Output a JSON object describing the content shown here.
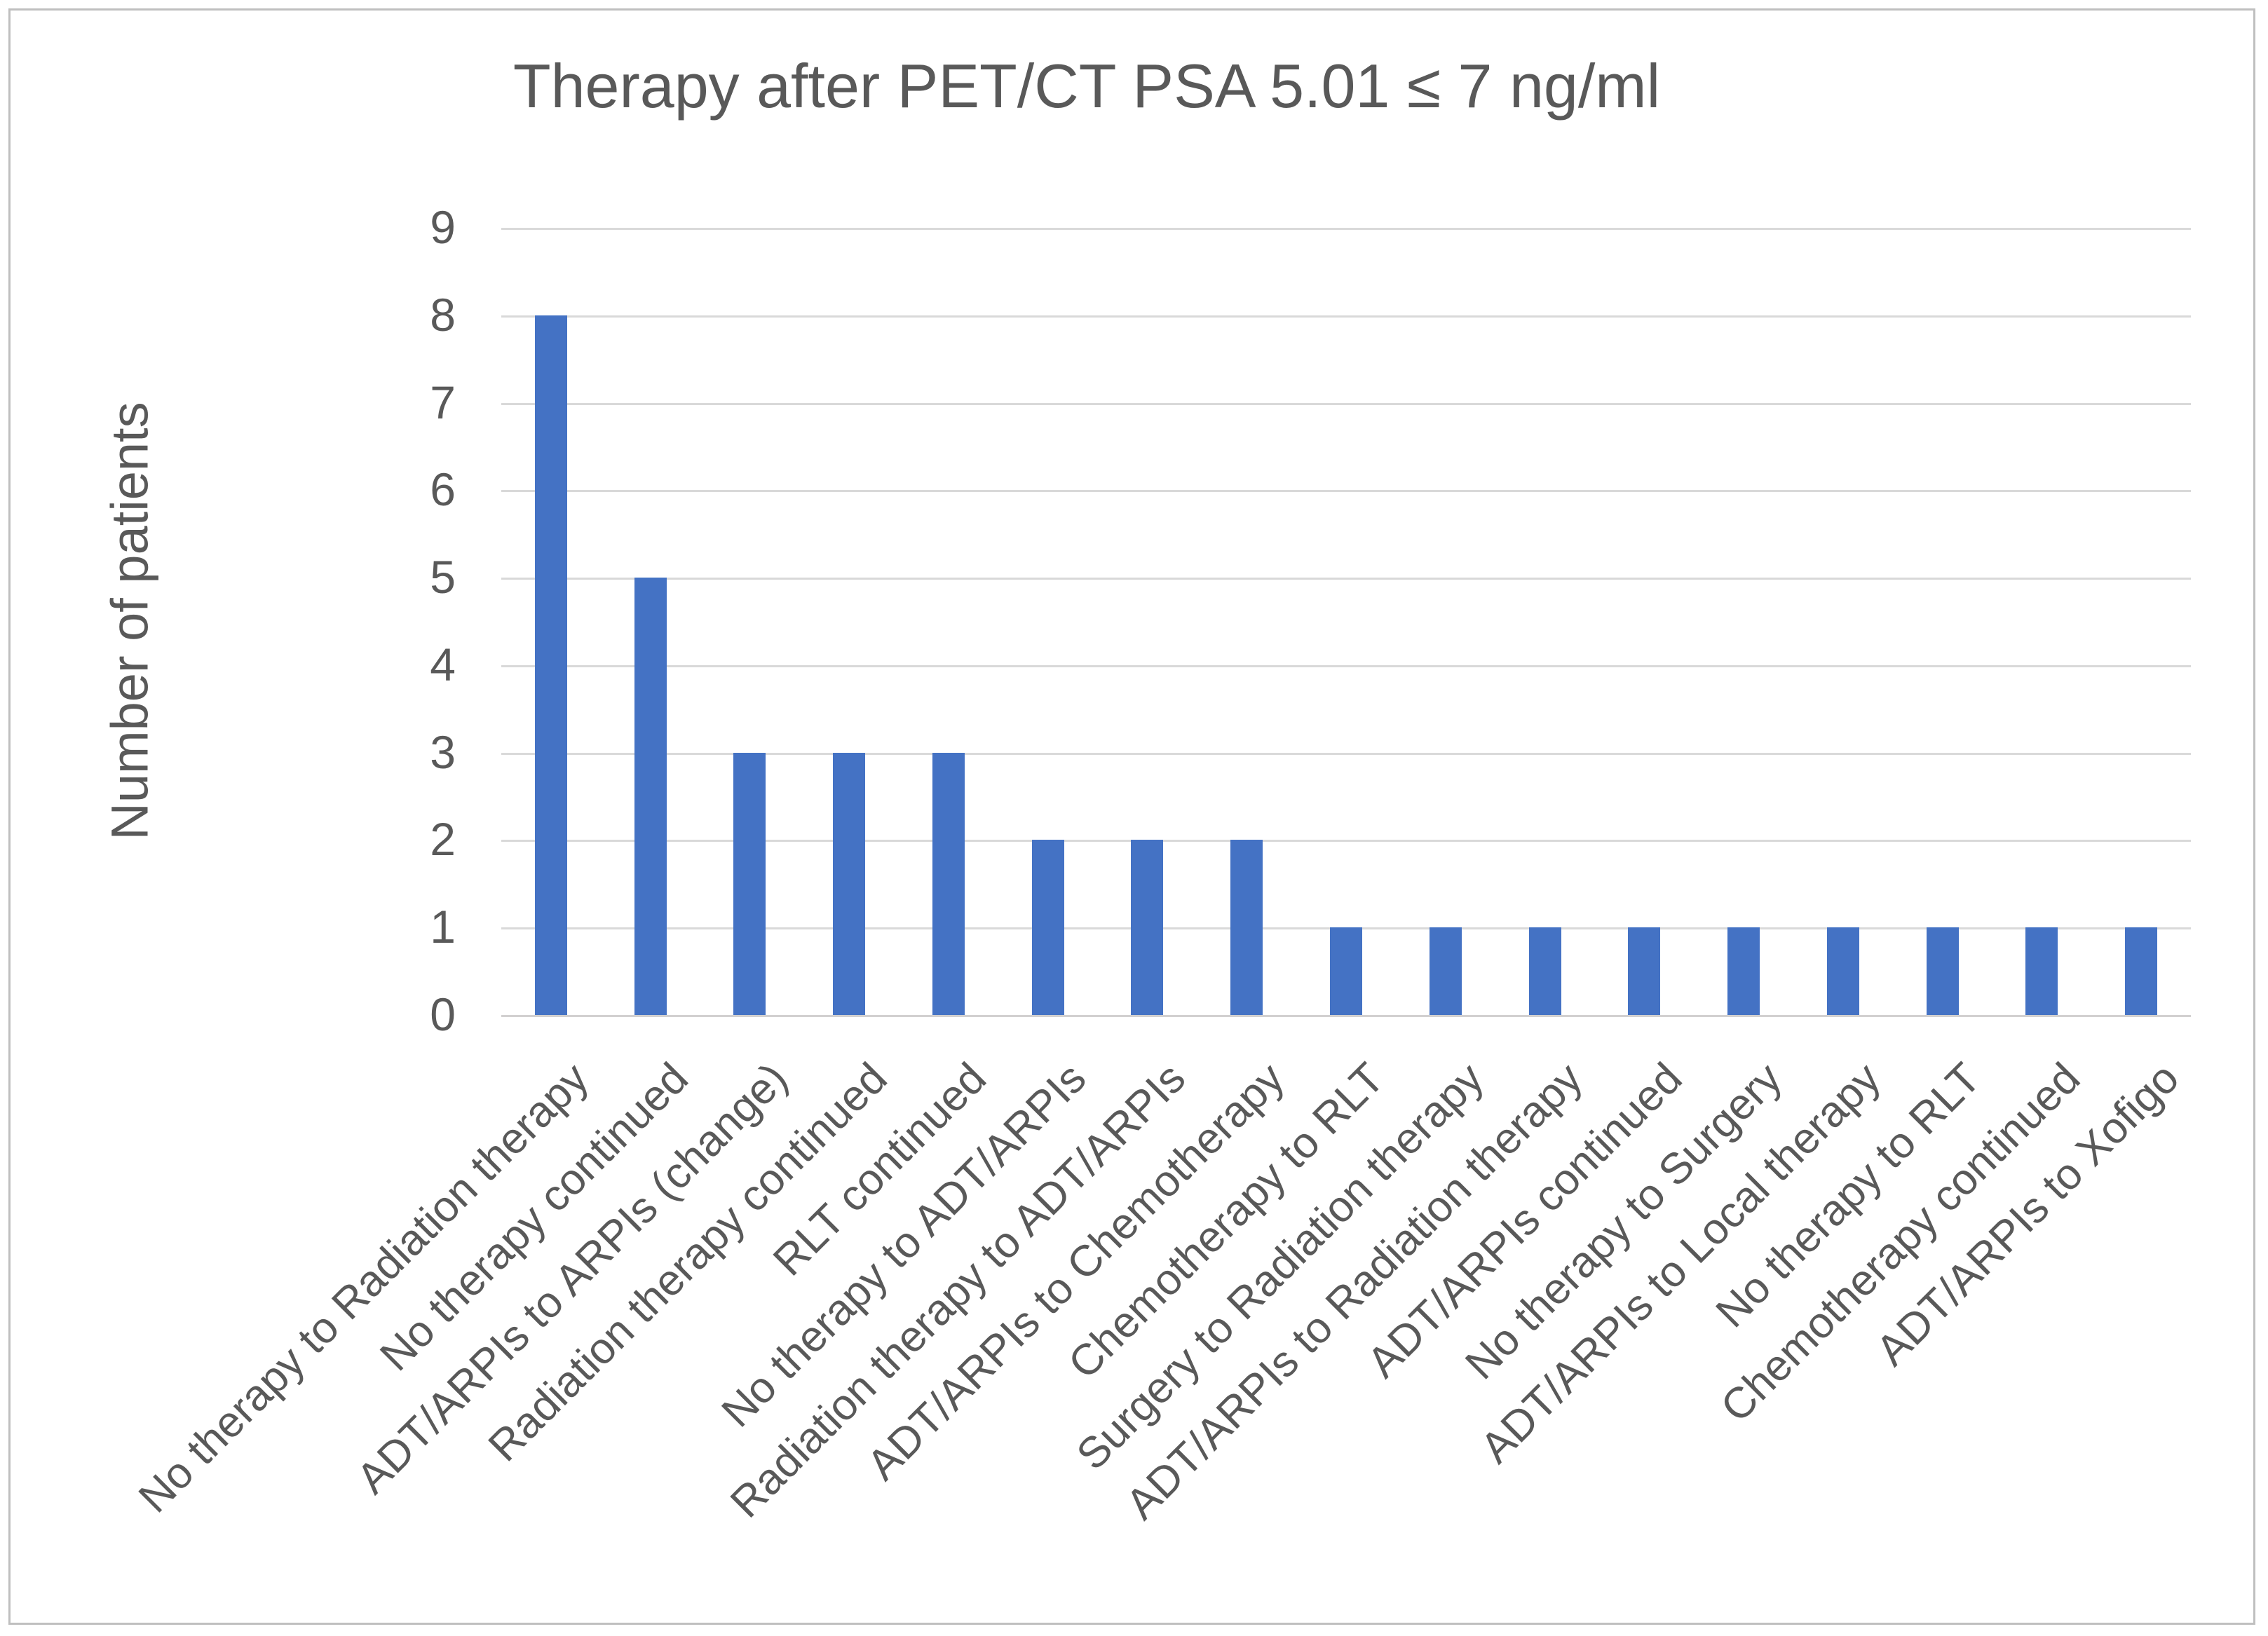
{
  "chart_data": {
    "type": "bar",
    "title": "Therapy after PET/CT PSA 5.01 ≤ 7 ng/ml",
    "xlabel": "",
    "ylabel": "Number of patients",
    "ylim": [
      0,
      9
    ],
    "yticks": [
      0,
      1,
      2,
      3,
      4,
      5,
      6,
      7,
      8,
      9
    ],
    "grid": true,
    "legend_position": "none",
    "categories": [
      "No therapy to Radiation therapy",
      "No therapy continued",
      "ADT/ARPIs to ARPIs (change)",
      "Radiation therapy continued",
      "RLT continued",
      "No therapy to ADT/ARPIs",
      "Radiation therapy to ADT/ARPIs",
      "ADT/ARPIs to Chemotherapy",
      "Chemotherapy to RLT",
      "Surgery to Radiation therapy",
      "ADT/ARPIs to Radiation therapy",
      "ADT/ARPIs continued",
      "No therapy to Surgery",
      "ADT/ARPIs to Local therapy",
      "No therapy to RLT",
      "Chemotherapy continued",
      "ADT/ARPIs to Xofigo"
    ],
    "values": [
      8,
      5,
      3,
      3,
      3,
      2,
      2,
      2,
      1,
      1,
      1,
      1,
      1,
      1,
      1,
      1,
      1
    ],
    "colors": {
      "bar": "#4472C4",
      "gridline": "#D9D9D9",
      "axis_line": "#D2D0D0",
      "text": "#595959",
      "frame_border": "#BFBFBF"
    }
  }
}
